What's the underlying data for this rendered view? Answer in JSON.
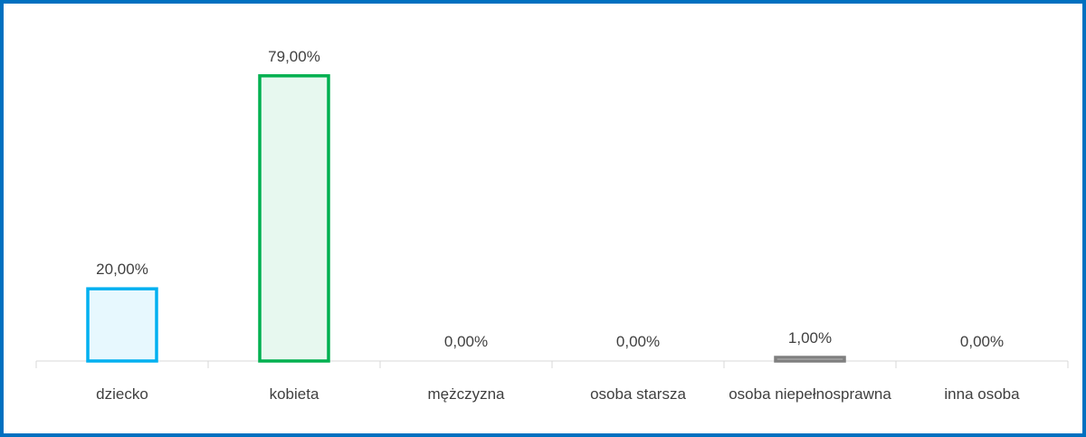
{
  "chart_data": {
    "type": "bar",
    "categories": [
      "dziecko",
      "kobieta",
      "mężczyzna",
      "osoba starsza",
      "osoba niepełnosprawna",
      "inna osoba"
    ],
    "values": [
      20,
      79,
      0,
      0,
      1,
      0
    ],
    "value_labels": [
      "20,00%",
      "79,00%",
      "0,00%",
      "0,00%",
      "1,00%",
      "0,00%"
    ],
    "colors": [
      "#00b0f0",
      "#00b050",
      "#7f7f7f",
      "#7f7f7f",
      "#7f7f7f",
      "#7f7f7f"
    ],
    "ylim": [
      0,
      100
    ]
  }
}
